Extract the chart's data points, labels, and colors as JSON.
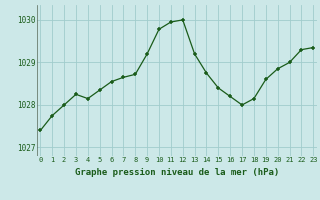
{
  "x": [
    0,
    1,
    2,
    3,
    4,
    5,
    6,
    7,
    8,
    9,
    10,
    11,
    12,
    13,
    14,
    15,
    16,
    17,
    18,
    19,
    20,
    21,
    22,
    23
  ],
  "y": [
    1027.4,
    1027.75,
    1028.0,
    1028.25,
    1028.15,
    1028.35,
    1028.55,
    1028.65,
    1028.72,
    1029.2,
    1029.78,
    1029.95,
    1030.0,
    1029.2,
    1028.75,
    1028.4,
    1028.2,
    1028.0,
    1028.15,
    1028.6,
    1028.85,
    1029.0,
    1029.3,
    1029.35
  ],
  "line_color": "#1a5c1a",
  "marker_color": "#1a5c1a",
  "bg_color": "#cce8e8",
  "grid_color": "#a0cccc",
  "xlabel": "Graphe pression niveau de la mer (hPa)",
  "xlabel_color": "#1a5c1a",
  "tick_color": "#1a5c1a",
  "ylim": [
    1026.8,
    1030.35
  ],
  "yticks": [
    1027,
    1028,
    1029,
    1030
  ],
  "xticks": [
    0,
    1,
    2,
    3,
    4,
    5,
    6,
    7,
    8,
    9,
    10,
    11,
    12,
    13,
    14,
    15,
    16,
    17,
    18,
    19,
    20,
    21,
    22,
    23
  ],
  "xlim": [
    -0.3,
    23.3
  ]
}
